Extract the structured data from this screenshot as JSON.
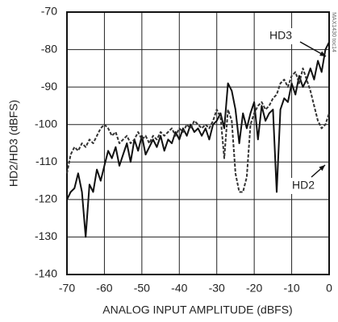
{
  "chart_data": {
    "type": "line",
    "xlabel": "ANALOG INPUT AMPLITUDE (dBFS)",
    "ylabel": "HD2/HD3 (dBFS)",
    "watermark": "MAX1430 toc14",
    "x": [
      -70,
      -69,
      -68,
      -67,
      -66,
      -65,
      -64,
      -63,
      -62,
      -61,
      -60,
      -59,
      -58,
      -57,
      -56,
      -55,
      -54,
      -53,
      -52,
      -51,
      -50,
      -49,
      -48,
      -47,
      -46,
      -45,
      -44,
      -43,
      -42,
      -41,
      -40,
      -39,
      -38,
      -37,
      -36,
      -35,
      -34,
      -33,
      -32,
      -31,
      -30,
      -29,
      -28,
      -27,
      -26,
      -25,
      -24,
      -23,
      -22,
      -21,
      -20,
      -19,
      -18,
      -17,
      -16,
      -15,
      -14,
      -13,
      -12,
      -11,
      -10,
      -9,
      -8,
      -7,
      -6,
      -5,
      -4,
      -3,
      -2,
      -1,
      0
    ],
    "series": [
      {
        "name": "HD3",
        "color": "#111111",
        "style": "solid",
        "values": [
          -120,
          -118,
          -117,
          -113,
          -118,
          -130,
          -116,
          -118,
          -112,
          -115,
          -111,
          -107,
          -109,
          -106,
          -111,
          -108,
          -105,
          -110,
          -104,
          -107,
          -103,
          -108,
          -106,
          -104,
          -106,
          -103,
          -107,
          -104,
          -105,
          -102,
          -104,
          -101,
          -103,
          -100,
          -102,
          -101,
          -103,
          -101,
          -104,
          -100,
          -99,
          -97,
          -101,
          -89,
          -91,
          -96,
          -105,
          -97,
          -101,
          -97,
          -94,
          -104,
          -95,
          -99,
          -97,
          -96,
          -118,
          -96,
          -93,
          -94,
          -89,
          -92,
          -87,
          -90,
          -88,
          -85,
          -88,
          -83,
          -86,
          -80,
          -78
        ]
      },
      {
        "name": "HD2",
        "color": "#333333",
        "style": "dashed",
        "values": [
          -113,
          -108,
          -106,
          -107,
          -105,
          -106,
          -104,
          -105,
          -103,
          -101,
          -100,
          -101,
          -103,
          -102,
          -105,
          -104,
          -103,
          -105,
          -104,
          -102,
          -104,
          -103,
          -105,
          -103,
          -104,
          -102,
          -103,
          -102,
          -101,
          -103,
          -101,
          -102,
          -100,
          -101,
          -99,
          -100,
          -101,
          -100,
          -101,
          -99,
          -96,
          -98,
          -109,
          -96,
          -99,
          -113,
          -118,
          -118,
          -114,
          -100,
          -97,
          -95,
          -94,
          -96,
          -95,
          -93,
          -92,
          -89,
          -88,
          -90,
          -87,
          -86,
          -89,
          -85,
          -88,
          -91,
          -95,
          -99,
          -101,
          -100,
          -97
        ]
      }
    ],
    "xlim": [
      -70,
      0
    ],
    "xticks": [
      -70,
      -60,
      -50,
      -40,
      -30,
      -20,
      -10,
      0
    ],
    "ylim": [
      -140,
      -70
    ],
    "yticks": [
      -70,
      -80,
      -90,
      -100,
      -110,
      -120,
      -130,
      -140
    ],
    "grid": true
  }
}
